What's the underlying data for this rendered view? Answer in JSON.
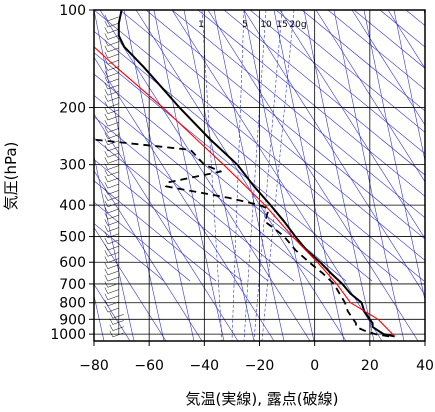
{
  "chart_data": {
    "type": "line",
    "title": "",
    "xlabel": "気温(実線), 露点(破線)",
    "ylabel": "気圧(hPa)",
    "xlim": [
      -80,
      40
    ],
    "ylim_hpa": [
      1050,
      100
    ],
    "y_scale": "log",
    "x_ticks": [
      "−80",
      "−60",
      "−40",
      "−20",
      "0",
      "20",
      "40"
    ],
    "y_ticks": [
      {
        "p": 100,
        "label": "100"
      },
      {
        "p": 200,
        "label": "200"
      },
      {
        "p": 300,
        "label": "300"
      },
      {
        "p": 400,
        "label": "400"
      },
      {
        "p": 500,
        "label": "500"
      },
      {
        "p": 600,
        "label": "600"
      },
      {
        "p": 700,
        "label": "700"
      },
      {
        "p": 800,
        "label": "800"
      },
      {
        "p": 900,
        "label": "900"
      },
      {
        "p": 1000,
        "label": "1000"
      }
    ],
    "mixing_ratio_labels": [
      "1",
      "5",
      "10",
      "15",
      "20g"
    ],
    "colors": {
      "temperature": "#000000",
      "dewpoint": "#000000",
      "parcel": "#ff0000",
      "background_lines": "#3333cc",
      "grid": "#000000"
    },
    "series": [
      {
        "style": "solid",
        "points": [
          [
            1016,
            29
          ],
          [
            1000,
            25
          ],
          [
            975,
            23
          ],
          [
            950,
            21
          ],
          [
            925,
            21
          ],
          [
            900,
            20
          ],
          [
            850,
            18
          ],
          [
            800,
            17
          ],
          [
            750,
            13
          ],
          [
            700,
            10
          ],
          [
            650,
            6
          ],
          [
            600,
            2
          ],
          [
            550,
            -3
          ],
          [
            500,
            -7
          ],
          [
            450,
            -11
          ],
          [
            400,
            -16
          ],
          [
            350,
            -22
          ],
          [
            300,
            -28
          ],
          [
            250,
            -38
          ],
          [
            200,
            -49
          ],
          [
            175,
            -55
          ],
          [
            150,
            -62
          ],
          [
            130,
            -69
          ],
          [
            120,
            -71
          ],
          [
            110,
            -71
          ],
          [
            100,
            -70
          ]
        ]
      },
      {
        "style": "dashed",
        "points": [
          [
            1016,
            27
          ],
          [
            1000,
            22
          ],
          [
            975,
            18
          ],
          [
            950,
            15
          ],
          [
            925,
            15
          ],
          [
            900,
            14
          ],
          [
            850,
            12
          ],
          [
            800,
            11
          ],
          [
            750,
            9
          ],
          [
            700,
            7
          ],
          [
            650,
            3
          ],
          [
            600,
            -2
          ],
          [
            550,
            -7
          ],
          [
            500,
            -11
          ],
          [
            470,
            -15
          ],
          [
            450,
            -18
          ],
          [
            420,
            -17
          ],
          [
            410,
            -17
          ],
          [
            400,
            -20
          ],
          [
            380,
            -31
          ],
          [
            350,
            -54
          ],
          [
            340,
            -53
          ],
          [
            315,
            -34
          ],
          [
            300,
            -40
          ],
          [
            270,
            -45
          ],
          [
            250,
            -82
          ]
        ]
      },
      {
        "style": "solid-red",
        "points": [
          [
            1016,
            29
          ],
          [
            900,
            23
          ],
          [
            800,
            13
          ],
          [
            700,
            8
          ],
          [
            600,
            1
          ],
          [
            500,
            -8
          ],
          [
            400,
            -18
          ],
          [
            300,
            -33
          ],
          [
            250,
            -43
          ],
          [
            200,
            -55
          ],
          [
            150,
            -72
          ],
          [
            130,
            -80
          ]
        ]
      }
    ]
  }
}
